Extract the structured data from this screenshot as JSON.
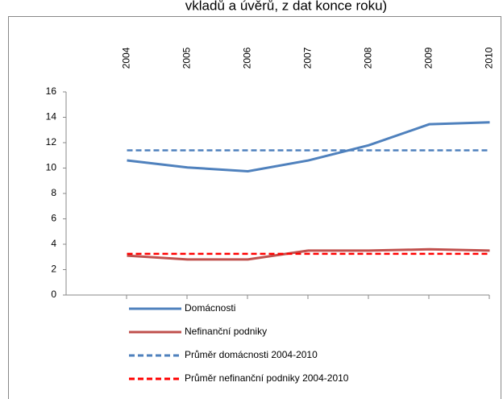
{
  "chart_data": {
    "type": "line",
    "title": "vkladů a úvěrů, z dat konce roku)",
    "categories": [
      "2004",
      "2005",
      "2006",
      "2007",
      "2008",
      "2009",
      "2010"
    ],
    "series": [
      {
        "name": "Domácnosti",
        "color": "#4f81bd",
        "dashed": false,
        "values": [
          10.6,
          10.05,
          9.75,
          10.6,
          11.8,
          13.45,
          13.6
        ]
      },
      {
        "name": "Nefinanční podniky",
        "color": "#c0504d",
        "dashed": false,
        "values": [
          3.1,
          2.8,
          2.8,
          3.5,
          3.5,
          3.6,
          3.5
        ]
      },
      {
        "name": "Průměr domácnosti 2004-2010",
        "color": "#4f81bd",
        "dashed": true,
        "values": [
          11.4,
          11.4,
          11.4,
          11.4,
          11.4,
          11.4,
          11.4
        ]
      },
      {
        "name": "Průměr nefinanční podniky 2004-2010",
        "color": "#ff0000",
        "dashed": true,
        "values": [
          3.25,
          3.25,
          3.25,
          3.25,
          3.25,
          3.25,
          3.25
        ]
      }
    ],
    "ylim": [
      0,
      16
    ],
    "yticks": [
      0,
      2,
      4,
      6,
      8,
      10,
      12,
      14,
      16
    ],
    "grid": false
  }
}
